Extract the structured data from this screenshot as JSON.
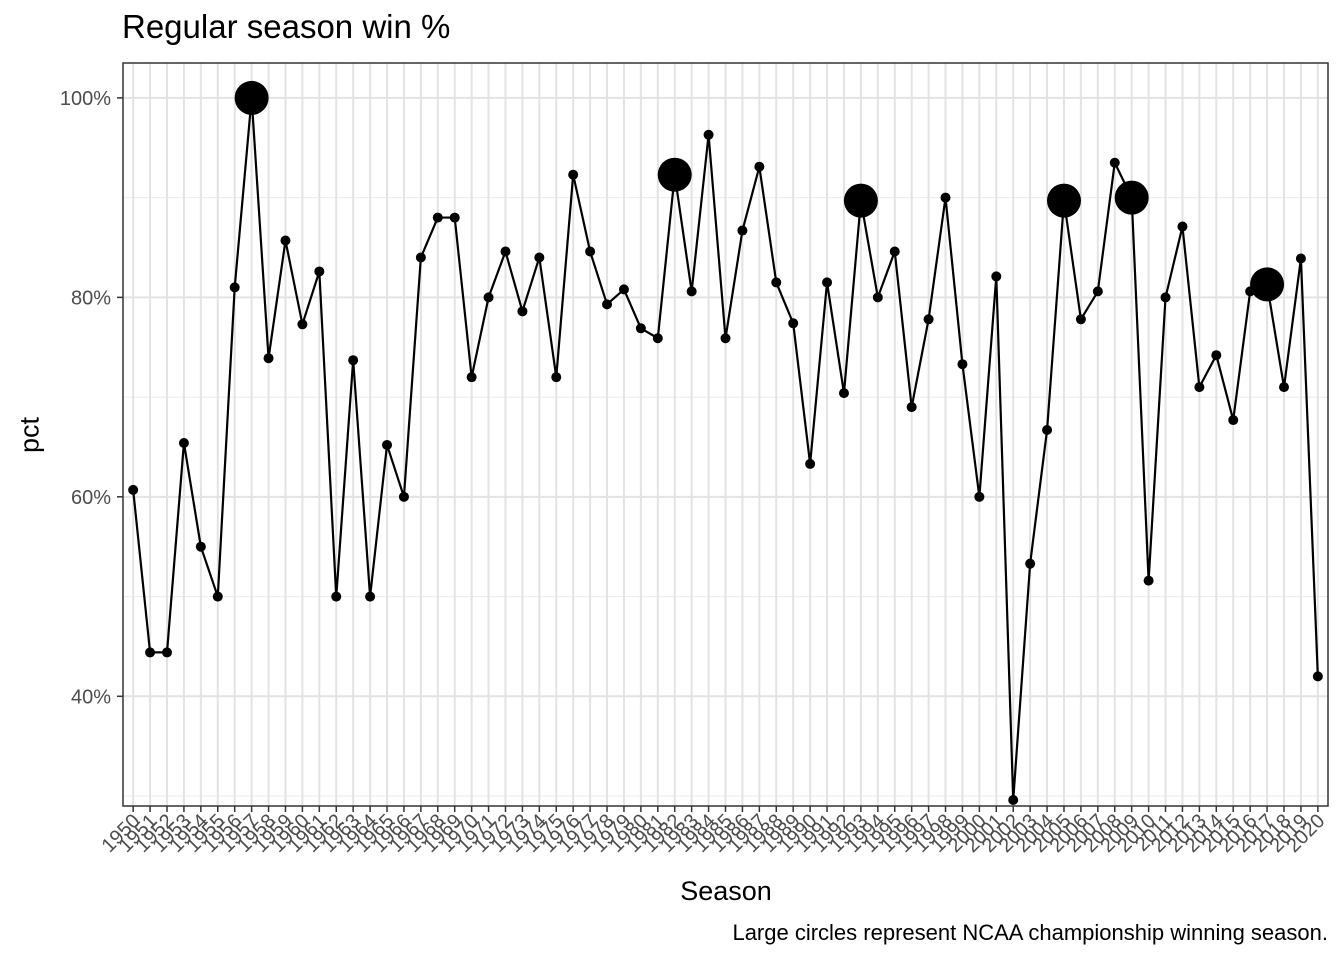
{
  "chart_data": {
    "type": "line",
    "title": "Regular season win %",
    "xlabel": "Season",
    "ylabel": "pct",
    "caption": "Large circles represent NCAA championship winning season.",
    "grid": true,
    "ylim": [
      0.29,
      1.035
    ],
    "yticks": [
      0.4,
      0.6,
      0.8,
      1.0
    ],
    "ytick_labels": [
      "40%",
      "60%",
      "80%",
      "100%"
    ],
    "x": [
      1950,
      1951,
      1952,
      1953,
      1954,
      1955,
      1956,
      1957,
      1958,
      1959,
      1960,
      1961,
      1962,
      1963,
      1964,
      1965,
      1966,
      1967,
      1968,
      1969,
      1970,
      1971,
      1972,
      1973,
      1974,
      1975,
      1976,
      1977,
      1978,
      1979,
      1980,
      1981,
      1982,
      1983,
      1984,
      1985,
      1986,
      1987,
      1988,
      1989,
      1990,
      1991,
      1992,
      1993,
      1994,
      1995,
      1996,
      1997,
      1998,
      1999,
      2000,
      2001,
      2002,
      2003,
      2004,
      2005,
      2006,
      2007,
      2008,
      2009,
      2010,
      2011,
      2012,
      2013,
      2014,
      2015,
      2016,
      2017,
      2018,
      2019,
      2020
    ],
    "series": [
      {
        "values": [
          0.607,
          0.444,
          0.444,
          0.654,
          0.55,
          0.5,
          0.81,
          1.0,
          0.739,
          0.857,
          0.773,
          0.826,
          0.5,
          0.737,
          0.5,
          0.652,
          0.6,
          0.84,
          0.88,
          0.88,
          0.72,
          0.8,
          0.846,
          0.786,
          0.84,
          0.72,
          0.923,
          0.846,
          0.793,
          0.808,
          0.769,
          0.759,
          0.923,
          0.806,
          0.963,
          0.759,
          0.867,
          0.931,
          0.815,
          0.774,
          0.633,
          0.815,
          0.704,
          0.897,
          0.8,
          0.846,
          0.69,
          0.778,
          0.9,
          0.733,
          0.6,
          0.821,
          0.296,
          0.533,
          0.667,
          0.897,
          0.778,
          0.806,
          0.935,
          0.9,
          0.516,
          0.8,
          0.871,
          0.71,
          0.742,
          0.677,
          0.806,
          0.813,
          0.71,
          0.839,
          0.42
        ]
      }
    ],
    "championship_seasons": [
      1957,
      1982,
      1993,
      2005,
      2009,
      2017
    ]
  }
}
